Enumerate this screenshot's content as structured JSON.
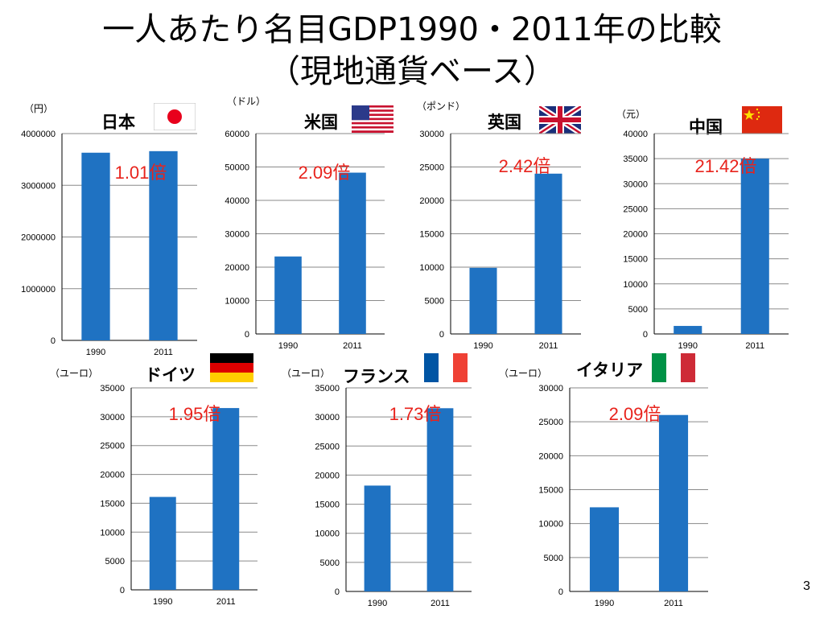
{
  "slide": {
    "title_line1": "一人あたり名目GDP1990・2011年の比較",
    "title_line2": "（現地通貨ベース）",
    "page_number": "3"
  },
  "colors": {
    "bar": "#1f72c2",
    "ratio": "#e8231c",
    "grid": "#8a8a8a"
  },
  "chart_data": [
    {
      "type": "bar",
      "country": "日本",
      "unit": "（円）",
      "flag": "japan-flag-icon",
      "categories": [
        "1990",
        "2011"
      ],
      "values": [
        3630000,
        3660000
      ],
      "ylim": [
        0,
        4000000
      ],
      "yticks": [
        "0",
        "1000000",
        "2000000",
        "3000000",
        "4000000"
      ],
      "ratio_label": "1.01倍"
    },
    {
      "type": "bar",
      "country": "米国",
      "unit": "（ドル）",
      "flag": "usa-flag-icon",
      "categories": [
        "1990",
        "2011"
      ],
      "values": [
        23200,
        48300
      ],
      "ylim": [
        0,
        60000
      ],
      "yticks": [
        "0",
        "10000",
        "20000",
        "30000",
        "40000",
        "50000",
        "60000"
      ],
      "ratio_label": "2.09倍"
    },
    {
      "type": "bar",
      "country": "英国",
      "unit": "（ポンド）",
      "flag": "uk-flag-icon",
      "categories": [
        "1990",
        "2011"
      ],
      "values": [
        9900,
        24000
      ],
      "ylim": [
        0,
        30000
      ],
      "yticks": [
        "0",
        "5000",
        "10000",
        "15000",
        "20000",
        "25000",
        "30000"
      ],
      "ratio_label": "2.42倍"
    },
    {
      "type": "bar",
      "country": "中国",
      "unit": "（元）",
      "flag": "china-flag-icon",
      "categories": [
        "1990",
        "2011"
      ],
      "values": [
        1600,
        35000
      ],
      "ylim": [
        0,
        40000
      ],
      "yticks": [
        "0",
        "5000",
        "10000",
        "15000",
        "20000",
        "25000",
        "30000",
        "35000",
        "40000"
      ],
      "ratio_label": "21.42倍"
    },
    {
      "type": "bar",
      "country": "ドイツ",
      "unit": "（ユーロ）",
      "flag": "germany-flag-icon",
      "categories": [
        "1990",
        "2011"
      ],
      "values": [
        16100,
        31500
      ],
      "ylim": [
        0,
        35000
      ],
      "yticks": [
        "0",
        "5000",
        "10000",
        "15000",
        "20000",
        "25000",
        "30000",
        "35000"
      ],
      "ratio_label": "1.95倍"
    },
    {
      "type": "bar",
      "country": "フランス",
      "unit": "（ユーロ）",
      "flag": "france-flag-icon",
      "categories": [
        "1990",
        "2011"
      ],
      "values": [
        18200,
        31500
      ],
      "ylim": [
        0,
        35000
      ],
      "yticks": [
        "0",
        "5000",
        "10000",
        "15000",
        "20000",
        "25000",
        "30000",
        "35000"
      ],
      "ratio_label": "1.73倍"
    },
    {
      "type": "bar",
      "country": "イタリア",
      "unit": "（ユーロ）",
      "flag": "italy-flag-icon",
      "categories": [
        "1990",
        "2011"
      ],
      "values": [
        12400,
        26000
      ],
      "ylim": [
        0,
        30000
      ],
      "yticks": [
        "0",
        "5000",
        "10000",
        "15000",
        "20000",
        "25000",
        "30000"
      ],
      "ratio_label": "2.09倍"
    }
  ]
}
